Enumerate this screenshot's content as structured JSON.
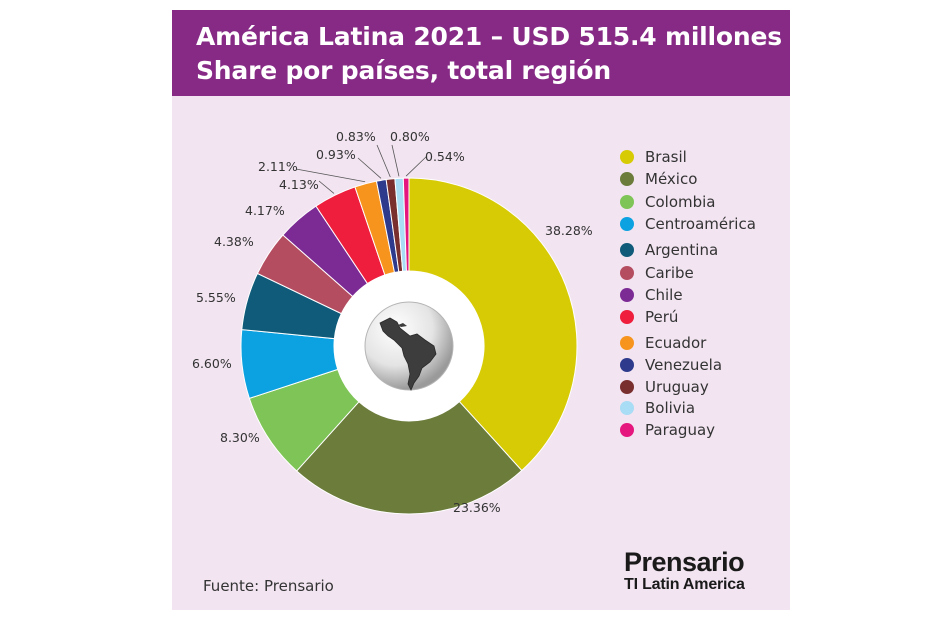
{
  "header": {
    "title_line1": "América Latina 2021 – USD 515.4 millones",
    "title_line2": "Share por países, total región"
  },
  "source": "Fuente: Prensario",
  "logo": {
    "main": "Prensario",
    "sub": "TI Latin America"
  },
  "globe_icon": "latin-america-globe-icon",
  "chart_data": {
    "type": "pie",
    "style": "donut",
    "legend_position": "right",
    "slices": [
      {
        "name": "Brasil",
        "value": 38.28,
        "label": "38.28%",
        "color": "#d7cb06"
      },
      {
        "name": "México",
        "value": 23.36,
        "label": "23.36%",
        "color": "#6b7c3b"
      },
      {
        "name": "Colombia",
        "value": 8.3,
        "label": "8.30%",
        "color": "#7ec456"
      },
      {
        "name": "Centroamérica",
        "value": 6.6,
        "label": "6.60%",
        "color": "#0ca1e0"
      },
      {
        "name": "Argentina",
        "value": 5.55,
        "label": "5.55%",
        "color": "#0f5b79"
      },
      {
        "name": "Caribe",
        "value": 4.38,
        "label": "4.38%",
        "color": "#b54d61"
      },
      {
        "name": "Chile",
        "value": 4.17,
        "label": "4.17%",
        "color": "#7c2b95"
      },
      {
        "name": "Perú",
        "value": 4.13,
        "label": "4.13%",
        "color": "#ee1e3c"
      },
      {
        "name": "Ecuador",
        "value": 2.11,
        "label": "2.11%",
        "color": "#f7941d"
      },
      {
        "name": "Venezuela",
        "value": 0.93,
        "label": "0.93%",
        "color": "#2e3a8c"
      },
      {
        "name": "Uruguay",
        "value": 0.83,
        "label": "0.83%",
        "color": "#7a2f2f"
      },
      {
        "name": "Bolivia",
        "value": 0.8,
        "label": "0.80%",
        "color": "#a9dcf5"
      },
      {
        "name": "Paraguay",
        "value": 0.54,
        "label": "0.54%",
        "color": "#e5177e"
      }
    ]
  }
}
